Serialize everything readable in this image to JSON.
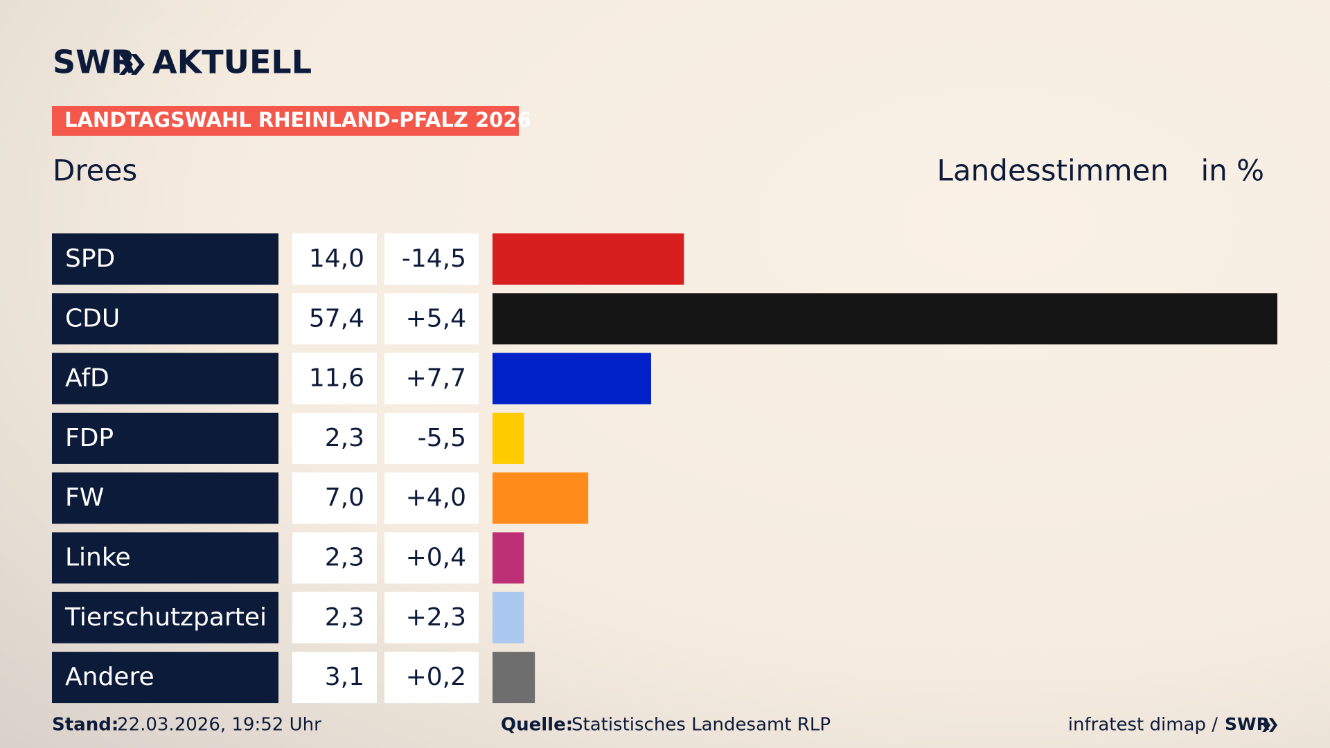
{
  "header": {
    "brand": "SWR",
    "product": "AKTUELL"
  },
  "chart_data": {
    "type": "bar",
    "orientation": "horizontal",
    "title": "LANDTAGSWAHL RHEINLAND-PFALZ 2026",
    "subtitle": "Drees",
    "value_title": "Landesstimmen",
    "unit_label": "in %",
    "categories": [
      "SPD",
      "CDU",
      "AfD",
      "FDP",
      "FW",
      "Linke",
      "Tierschutzpartei",
      "Andere"
    ],
    "values": [
      14.0,
      57.4,
      11.6,
      2.3,
      7.0,
      2.3,
      2.3,
      3.1
    ],
    "value_labels": [
      "14,0",
      "57,4",
      "11,6",
      "2,3",
      "7,0",
      "2,3",
      "2,3",
      "3,1"
    ],
    "changes": [
      -14.5,
      5.4,
      7.7,
      -5.5,
      4.0,
      0.4,
      2.3,
      0.2
    ],
    "change_labels": [
      "-14,5",
      "+5,4",
      "+7,7",
      "-5,5",
      "+4,0",
      "+0,4",
      "+2,3",
      "+0,2"
    ],
    "colors": [
      "#d71f1f",
      "#151515",
      "#0021c8",
      "#ffcc00",
      "#ff8c1a",
      "#be3075",
      "#aac8f0",
      "#6e6e6e"
    ]
  },
  "footer": {
    "stand_label": "Stand:",
    "stand": "22.03.2026, 19:52 Uhr",
    "source_label": "Quelle:",
    "source": "Statistisches Landesamt RLP",
    "credit": "infratest dimap /",
    "credit_brand": "SWR"
  }
}
